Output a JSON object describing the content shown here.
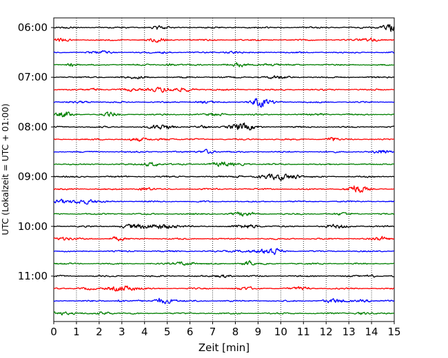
{
  "chart_data": {
    "type": "line",
    "title": "",
    "xlabel": "Zeit  [min]",
    "ylabel": "UTC (Lokalzeit = UTC + 01:00)",
    "xlim": [
      0,
      15
    ],
    "x_ticks": [
      "0",
      "1",
      "2",
      "3",
      "4",
      "5",
      "6",
      "7",
      "8",
      "9",
      "10",
      "11",
      "12",
      "13",
      "14",
      "15"
    ],
    "y_ticks": [
      "06:00",
      "07:00",
      "08:00",
      "09:00",
      "10:00",
      "11:00"
    ],
    "grid": "vertical dotted lines at each minute",
    "trace_interval_minutes": 15,
    "color_cycle": [
      "#000000",
      "#ff0000",
      "#0000ff",
      "#007f00"
    ],
    "traces": [
      {
        "start": "06:00",
        "color": "#000000"
      },
      {
        "start": "06:15",
        "color": "#ff0000"
      },
      {
        "start": "06:30",
        "color": "#0000ff"
      },
      {
        "start": "06:45",
        "color": "#007f00"
      },
      {
        "start": "07:00",
        "color": "#000000"
      },
      {
        "start": "07:15",
        "color": "#ff0000"
      },
      {
        "start": "07:30",
        "color": "#0000ff"
      },
      {
        "start": "07:45",
        "color": "#007f00"
      },
      {
        "start": "08:00",
        "color": "#000000"
      },
      {
        "start": "08:15",
        "color": "#ff0000"
      },
      {
        "start": "08:30",
        "color": "#0000ff"
      },
      {
        "start": "08:45",
        "color": "#007f00"
      },
      {
        "start": "09:00",
        "color": "#000000"
      },
      {
        "start": "09:15",
        "color": "#ff0000"
      },
      {
        "start": "09:30",
        "color": "#0000ff"
      },
      {
        "start": "09:45",
        "color": "#007f00"
      },
      {
        "start": "10:00",
        "color": "#000000"
      },
      {
        "start": "10:15",
        "color": "#ff0000"
      },
      {
        "start": "10:30",
        "color": "#0000ff"
      },
      {
        "start": "10:45",
        "color": "#007f00"
      },
      {
        "start": "11:00",
        "color": "#000000"
      },
      {
        "start": "11:15",
        "color": "#ff0000"
      },
      {
        "start": "11:30",
        "color": "#0000ff"
      },
      {
        "start": "11:45",
        "color": "#007f00"
      }
    ]
  }
}
